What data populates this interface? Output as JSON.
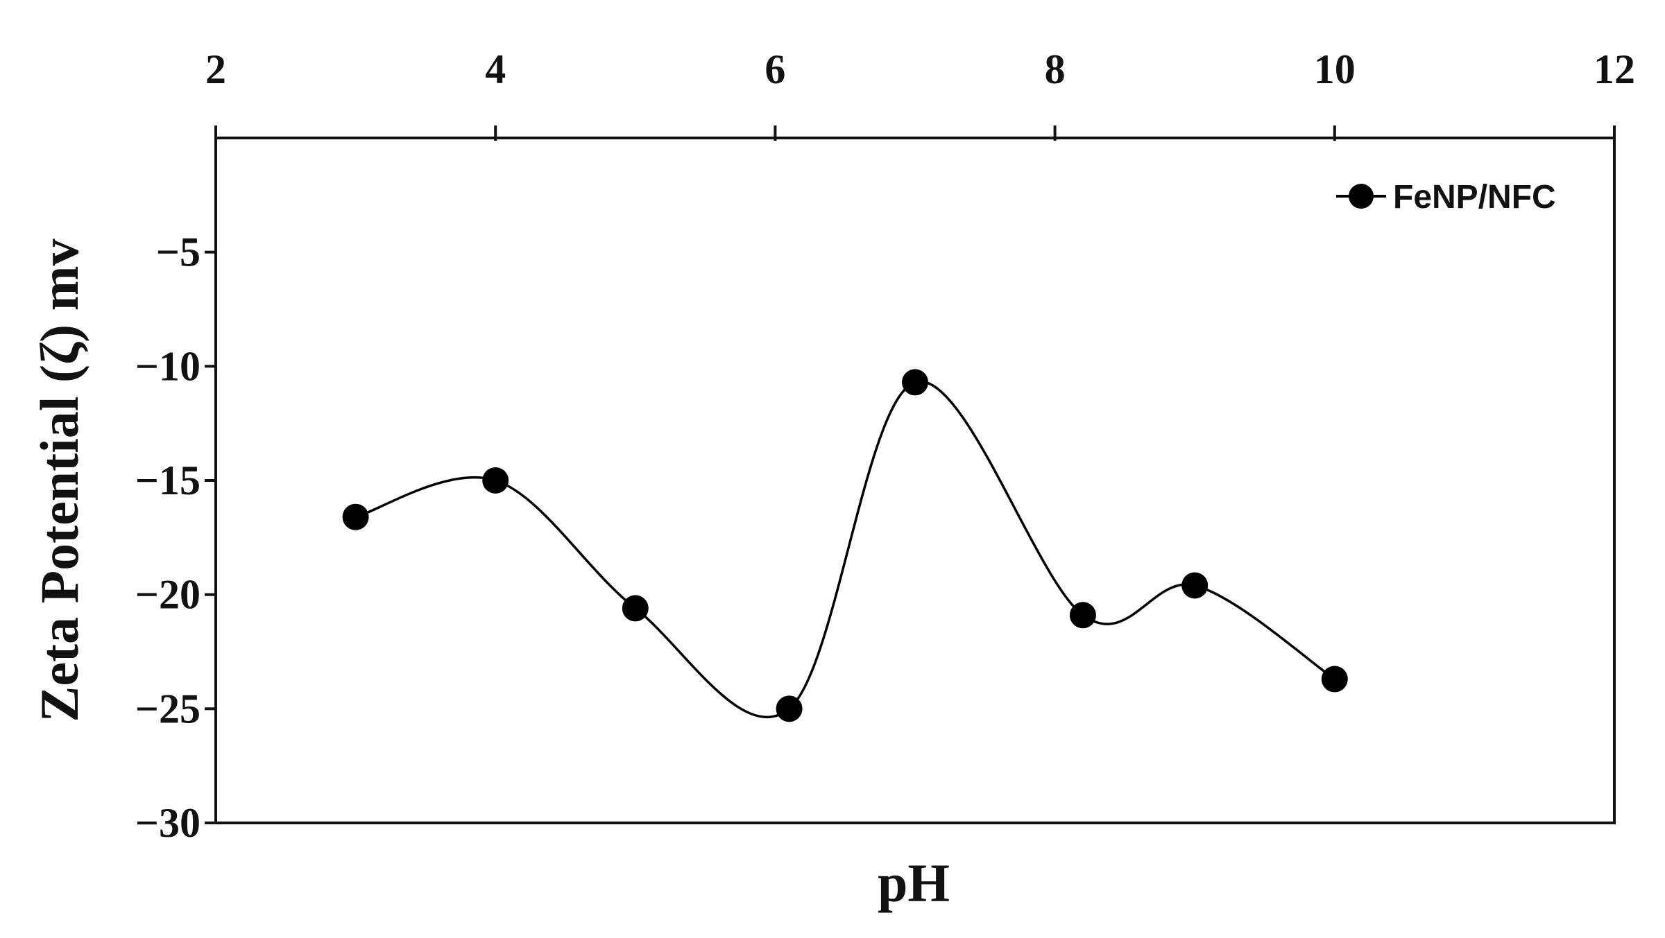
{
  "chart_data": {
    "type": "line",
    "x_label": "pH",
    "y_label": "Zeta Potential (ζ) mv",
    "xlim": [
      2,
      12
    ],
    "xticks": [
      2,
      4,
      6,
      8,
      10,
      12
    ],
    "ylim": [
      -30,
      0
    ],
    "yticks": [
      {
        "value": -5,
        "label": "−5"
      },
      {
        "value": -10,
        "label": "−10"
      },
      {
        "value": -15,
        "label": "−15"
      },
      {
        "value": -20,
        "label": "−20"
      },
      {
        "value": -25,
        "label": "−25"
      },
      {
        "value": -30,
        "label": "−30"
      }
    ],
    "x": [
      3,
      4,
      5,
      6.1,
      7,
      8.2,
      9,
      10
    ],
    "series": [
      {
        "name": "FeNP/NFC",
        "color": "#000000",
        "values": [
          -16.6,
          -15.0,
          -20.6,
          -25.0,
          -10.7,
          -20.9,
          -19.6,
          -23.7
        ]
      }
    ],
    "smooth": true
  }
}
